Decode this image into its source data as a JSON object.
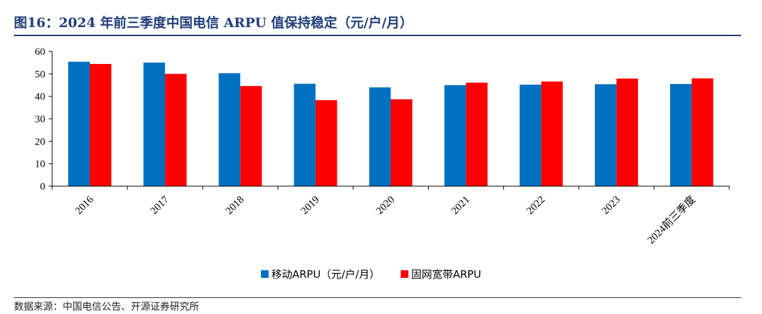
{
  "header": {
    "title": "图16：2024 年前三季度中国电信 ARPU 值保持稳定（元/户/月）"
  },
  "footer": {
    "source": "数据来源：中国电信公告、开源证券研究所"
  },
  "chart_data": {
    "type": "bar",
    "title": "图16：2024 年前三季度中国电信 ARPU 值保持稳定（元/户/月）",
    "categories": [
      "2016",
      "2017",
      "2018",
      "2019",
      "2020",
      "2021",
      "2022",
      "2023",
      "2024前三季度"
    ],
    "series": [
      {
        "name": "移动ARPU（元/户/月）",
        "color": "#0070c0",
        "values": [
          55.4,
          55.0,
          50.3,
          45.6,
          44.0,
          45.0,
          45.2,
          45.4,
          45.5
        ]
      },
      {
        "name": "固网宽带ARPU",
        "color": "#ff0000",
        "values": [
          54.4,
          50.0,
          44.6,
          38.3,
          38.7,
          46.1,
          46.6,
          47.9,
          48.0
        ]
      }
    ],
    "ylim": [
      0,
      60
    ],
    "yticks": [
      0,
      10,
      20,
      30,
      40,
      50,
      60
    ],
    "grid": false,
    "legend_position": "bottom"
  }
}
